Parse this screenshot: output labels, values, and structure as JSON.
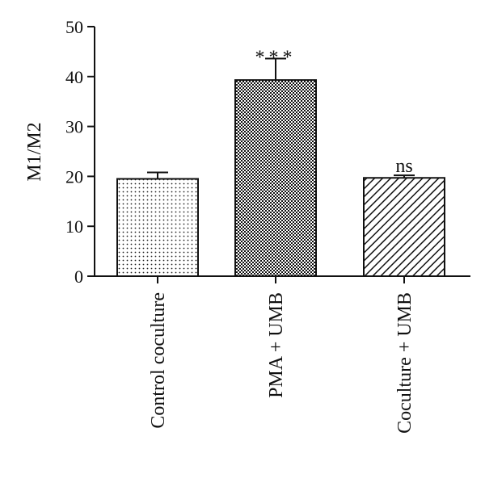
{
  "chart_data": {
    "type": "bar",
    "title": "",
    "xlabel": "",
    "ylabel": "M1/M2",
    "ylim": [
      0,
      50
    ],
    "yticks": [
      0,
      10,
      20,
      30,
      40,
      50
    ],
    "grid": false,
    "categories": [
      "Control coculture",
      "PMA + UMB",
      "Coculture + UMB"
    ],
    "values": [
      19.5,
      39.3,
      19.7
    ],
    "errors": [
      1.3,
      4.3,
      0.5
    ],
    "annotations": [
      "",
      "***",
      "ns"
    ],
    "fill_patterns": [
      "dots",
      "checker",
      "diagonal-hatch"
    ],
    "colors": {
      "bar_outline": "#111111",
      "pattern_ink": "#111111",
      "background": "#ffffff"
    }
  }
}
